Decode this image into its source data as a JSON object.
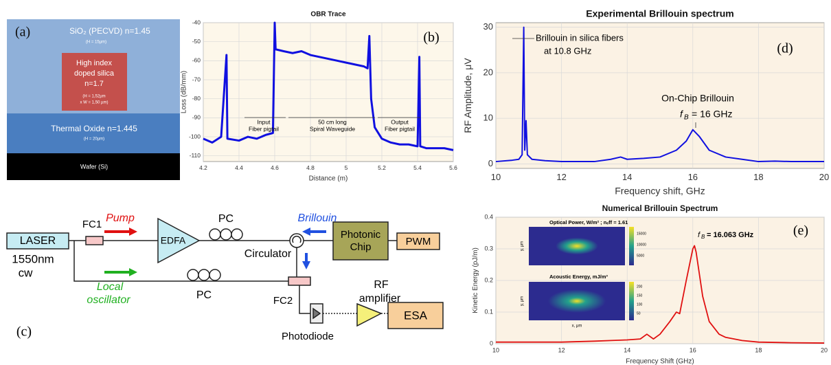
{
  "panel_a": {
    "label": "(a)",
    "cladding": "SiO₂ (PECVD) n=1.45",
    "cladding_size": "(H = 15µm)",
    "core_lines": [
      "High index",
      "doped silica",
      "n=1.7"
    ],
    "core_size_lines": [
      "(H = 1,52µm",
      "x W = 1,50 µm)"
    ],
    "thermal": "Thermal Oxide n=1.445",
    "thermal_size": "(H = 20µm)",
    "wafer": "Wafer (Si)"
  },
  "panel_c": {
    "label": "(c)",
    "laser": "LASER",
    "laser_lines": [
      "1550nm",
      "cw"
    ],
    "fc1": "FC1",
    "pump": "Pump",
    "edfa": "EDFA",
    "pc1": "PC",
    "circulator": "Circulator",
    "brillouin": "Brillouin",
    "chip_lines": [
      "Photonic",
      "Chip"
    ],
    "pwm": "PWM",
    "lo_lines": [
      "Local",
      "oscillator"
    ],
    "pc2": "PC",
    "fc2": "FC2",
    "rf_lines": [
      "RF",
      "amplifier"
    ],
    "esa": "ESA",
    "photodiode": "Photodiode"
  },
  "chart_data": [
    {
      "type": "line",
      "title": "OBR Trace",
      "x_label": "Distance (m)",
      "y_label": "Loss (dB/mm)",
      "panel_label": "(b)",
      "annotations": [
        [
          "Input",
          "Fiber pigtail"
        ],
        [
          "50 cm long",
          "Spiral Waveguide"
        ],
        [
          "Output",
          "Fiber pigtail"
        ]
      ],
      "color": "#1010e0",
      "x": [
        4.2,
        4.25,
        4.3,
        4.33,
        4.335,
        4.4,
        4.45,
        4.5,
        4.55,
        4.59,
        4.6,
        4.605,
        4.65,
        4.7,
        4.75,
        4.8,
        4.85,
        4.9,
        4.95,
        5.0,
        5.05,
        5.1,
        5.12,
        5.13,
        5.14,
        5.16,
        5.2,
        5.25,
        5.3,
        5.35,
        5.4,
        5.41,
        5.415,
        5.45,
        5.5,
        5.55,
        5.6
      ],
      "values": [
        -101,
        -103,
        -100,
        -57,
        -101,
        -102,
        -100,
        -101,
        -99,
        -98,
        -40,
        -54,
        -55,
        -56,
        -55,
        -57,
        -58,
        -59,
        -60,
        -61,
        -62,
        -63,
        -64,
        -47,
        -80,
        -95,
        -101,
        -103,
        -104,
        -104,
        -105,
        -58,
        -105,
        -106,
        -106,
        -106,
        -107
      ],
      "xlim": [
        4.2,
        5.6
      ],
      "xticks": [
        4.2,
        4.4,
        4.6,
        4.8,
        5,
        5.2,
        5.4,
        5.6
      ],
      "ylim": [
        -113,
        -40
      ],
      "yticks": [
        -40,
        -50,
        -60,
        -70,
        -80,
        -90,
        -100,
        -110
      ],
      "grid": true
    },
    {
      "type": "line",
      "title": "Experimental Brillouin spectrum",
      "x_label": "Frequency shift, GHz",
      "y_label": "RF Amplitude, μV",
      "panel_label": "(d)",
      "annotations": [
        [
          "Brillouin in silica fibers",
          "at 10.8 GHz"
        ],
        [
          "On-Chip Brillouin"
        ]
      ],
      "fb_note": {
        "symbol": "f",
        "subscript": "B",
        "text": "= 16 GHz"
      },
      "color": "#1010e0",
      "x": [
        10,
        10.5,
        10.7,
        10.8,
        10.85,
        10.88,
        10.92,
        10.96,
        11.1,
        11.5,
        12,
        12.5,
        13,
        13.5,
        13.8,
        14,
        14.5,
        15,
        15.5,
        15.8,
        16,
        16.2,
        16.5,
        17,
        17.5,
        18,
        18.5,
        19,
        19.5,
        20
      ],
      "values": [
        0.5,
        0.8,
        1,
        2,
        30,
        3,
        9.5,
        2,
        1,
        0.7,
        0.5,
        0.5,
        0.5,
        1,
        1.5,
        1,
        1.2,
        1.5,
        3,
        5,
        7.5,
        6,
        3,
        1.5,
        1,
        0.5,
        0.6,
        0.5,
        0.5,
        0.5
      ],
      "xlim": [
        10,
        20
      ],
      "xticks": [
        10,
        12,
        14,
        16,
        18,
        20
      ],
      "ylim": [
        -1,
        31
      ],
      "yticks": [
        0,
        10,
        20,
        30
      ],
      "grid": true
    },
    {
      "type": "line",
      "title": "Numerical Brillouin Spectrum",
      "x_label": "Frequency Shift (GHz)",
      "y_label": "Kinetic Energy (pJ/m)",
      "panel_label": "(e)",
      "fb_note": {
        "symbol": "f",
        "subscript": "B",
        "text": "= 16.063 GHz"
      },
      "insets": [
        {
          "title": "Optical Power, W/m² ; nₑff = 1.61",
          "y_label": "y, μm",
          "colorbar": [
            "15000",
            "10000",
            "5000"
          ]
        },
        {
          "title": "Acoustic Energy, mJ/m³",
          "y_label": "y, μm",
          "x_label": "x, μm",
          "colorbar": [
            "200",
            "150",
            "100",
            "50"
          ]
        }
      ],
      "color": "#e01010",
      "x": [
        10,
        12,
        13,
        13.5,
        14,
        14.4,
        14.6,
        14.8,
        15,
        15.3,
        15.5,
        15.6,
        15.8,
        16,
        16.05,
        16.1,
        16.3,
        16.5,
        16.8,
        17,
        17.5,
        18,
        19,
        20
      ],
      "values": [
        0.005,
        0.005,
        0.008,
        0.01,
        0.012,
        0.015,
        0.03,
        0.015,
        0.03,
        0.07,
        0.1,
        0.095,
        0.2,
        0.3,
        0.31,
        0.29,
        0.15,
        0.07,
        0.03,
        0.02,
        0.01,
        0.005,
        0.003,
        0.002
      ],
      "xlim": [
        10,
        20
      ],
      "xticks": [
        10,
        12,
        14,
        16,
        18,
        20
      ],
      "ylim": [
        0,
        0.4
      ],
      "yticks": [
        0,
        0.1,
        0.2,
        0.3,
        0.4
      ],
      "grid": true
    }
  ]
}
